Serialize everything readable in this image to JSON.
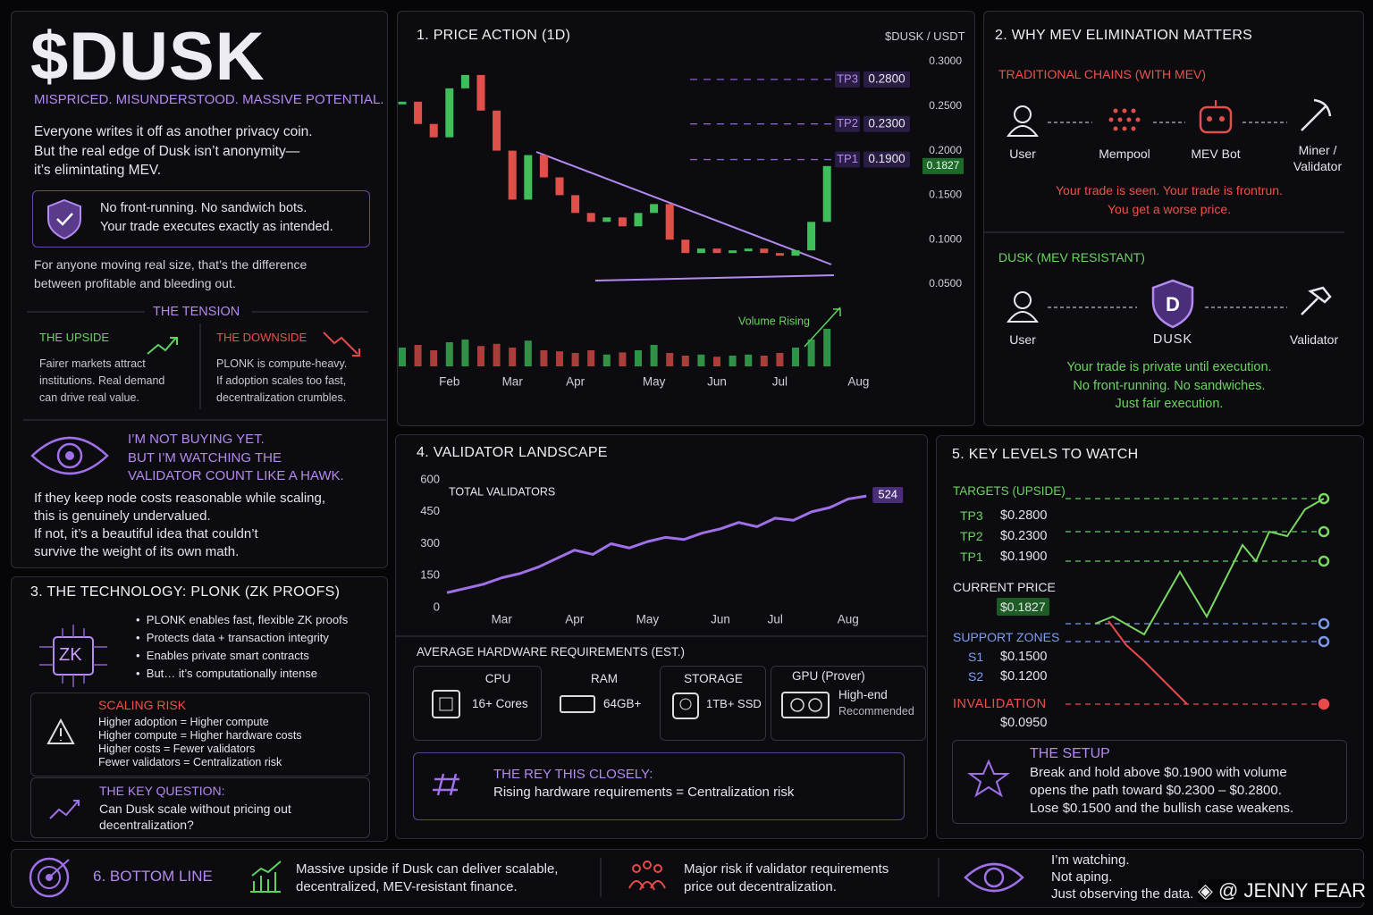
{
  "header": {
    "title": "$DUSK",
    "tagline": "MISPRICED. MISUNDERSTOOD. MASSIVE POTENTIAL.",
    "intro": [
      "Everyone writes it off as another privacy coin.",
      "But the real edge of Dusk isn’t anonymity—",
      "it’s elimintating MEV."
    ],
    "callout": [
      "No front-running. No sandwich bots.",
      "Your trade executes exactly as intended."
    ],
    "note": [
      "For anyone moving real size, that’s the difference",
      "between profitable and bleeding out."
    ]
  },
  "tension": {
    "title": "THE TENSION",
    "upside": {
      "title": "THE UPSIDE",
      "lines": [
        "Fairer markets attract",
        "institutions. Real demand",
        "can drive real value."
      ]
    },
    "downside": {
      "title": "THE DOWNSIDE",
      "lines": [
        "PLONK is compute-heavy.",
        "If adoption scales too fast,",
        "decentralization crumbles."
      ]
    }
  },
  "watch": {
    "headline": [
      "I’M NOT BUYING YET.",
      "BUT I’M WATCHING THE",
      "VALIDATOR COUNT LIKE A HAWK."
    ],
    "body": [
      "If they keep node costs reasonable while scaling,",
      "this is genuinely undervalued.",
      "If not, it’s a beautiful idea that couldn’t",
      "survive the weight of its own math."
    ]
  },
  "technology": {
    "title": "3. THE TECHNOLOGY: PLONK (ZK PROOFS)",
    "icon": "ZK",
    "bullets": [
      "PLONK enables fast, flexible ZK proofs",
      "Protects data + transaction integrity",
      "Enables private smart contracts",
      "But… it’s computationally intense"
    ],
    "risk": {
      "title": "SCALING RISK",
      "lines": [
        "Higher adoption = Higher compute",
        "Higher compute = Higher hardware costs",
        "Higher costs = Fewer validators",
        "Fewer validators = Centralization risk"
      ]
    },
    "question": {
      "title": "THE KEY QUESTION:",
      "lines": [
        "Can Dusk scale without pricing out",
        "decentralization?"
      ]
    }
  },
  "chart_data": [
    {
      "type": "candlestick",
      "title": "1. PRICE ACTION (1D)",
      "pair": "$DUSK / USDT",
      "categories": [
        null,
        null,
        null,
        "Feb",
        null,
        null,
        null,
        "Mar",
        null,
        null,
        null,
        "Apr",
        null,
        null,
        null,
        null,
        "May",
        null,
        null,
        null,
        "Jun",
        null,
        null,
        null,
        "Jul",
        null,
        null,
        null,
        null,
        "Aug"
      ],
      "values": [
        0.255,
        0.23,
        0.215,
        0.27,
        0.285,
        0.245,
        0.2,
        0.145,
        0.195,
        0.17,
        0.15,
        0.13,
        0.12,
        0.125,
        0.115,
        0.13,
        0.14,
        0.1,
        0.085,
        0.09,
        0.085,
        0.088,
        0.09,
        0.085,
        0.082,
        0.088,
        0.12,
        0.1827,
        null,
        null
      ],
      "volume": [
        35,
        40,
        30,
        45,
        50,
        38,
        42,
        35,
        48,
        30,
        28,
        25,
        30,
        22,
        26,
        30,
        40,
        25,
        20,
        22,
        18,
        20,
        22,
        20,
        25,
        35,
        50,
        70,
        null,
        null
      ],
      "up_color": "#3fbf5a",
      "down_color": "#e0504a",
      "ylim": [
        0.04,
        0.31
      ],
      "yticks": [
        {
          "value": 0.3,
          "label": "0.3000"
        },
        {
          "value": 0.25,
          "label": "0.2500"
        },
        {
          "value": 0.2,
          "label": "0.2000"
        },
        {
          "value": 0.15,
          "label": "0.1500"
        },
        {
          "value": 0.1,
          "label": "0.1000"
        },
        {
          "value": 0.05,
          "label": "0.0500"
        }
      ],
      "grid": false,
      "targets": [
        {
          "name": "TP3",
          "value": 0.28,
          "label": "0.2800"
        },
        {
          "name": "TP2",
          "value": 0.23,
          "label": "0.2300"
        },
        {
          "name": "TP1",
          "value": 0.19,
          "label": "0.1900"
        }
      ],
      "current": {
        "value": 0.1827,
        "label": "0.1827"
      },
      "annotation": "Volume Rising"
    },
    {
      "type": "line",
      "title": "4. VALIDATOR LANDSCAPE",
      "categories": [
        null,
        null,
        null,
        "Mar",
        null,
        null,
        null,
        "Apr",
        null,
        null,
        null,
        "May",
        null,
        null,
        null,
        "Jun",
        null,
        null,
        "Jul",
        null,
        null,
        null,
        "Aug",
        null
      ],
      "series": [
        {
          "name": "TOTAL VALIDATORS",
          "color": "#a070e8",
          "values": [
            70,
            90,
            110,
            140,
            160,
            190,
            230,
            270,
            250,
            300,
            280,
            310,
            330,
            320,
            350,
            370,
            400,
            380,
            420,
            410,
            450,
            470,
            510,
            524
          ]
        }
      ],
      "ylim": [
        0,
        600
      ],
      "yticks": [
        600,
        450,
        300,
        150,
        0
      ],
      "grid": false
    }
  ],
  "mev": {
    "title": "2. WHY MEV ELIMINATION MATTERS",
    "traditional": {
      "title": "TRADITIONAL CHAINS (WITH MEV)",
      "nodes": [
        "User",
        "Mempool",
        "MEV Bot",
        "Miner / Validator"
      ],
      "caption": [
        "Your trade is seen. Your trade is frontrun.",
        "You get a worse price."
      ]
    },
    "dusk": {
      "title": "DUSK (MEV RESISTANT)",
      "nodes": [
        "User",
        "DUSK",
        "Validator"
      ],
      "caption": [
        "Your trade is private until execution.",
        "No front-running. No sandwiches.",
        "Just fair execution."
      ]
    }
  },
  "hardware": {
    "title": "AVERAGE HARDWARE REQUIREMENTS (EST.)",
    "items": [
      {
        "label": "CPU",
        "value": "16+ Cores"
      },
      {
        "label": "RAM",
        "value": "64GB+"
      },
      {
        "label": "STORAGE",
        "value": "1TB+ SSD"
      },
      {
        "label": "GPU (Prover)",
        "value": "High-end",
        "note": "Recommended"
      }
    ],
    "watch": {
      "title": "THE REY THIS CLOSELY:",
      "text": "Rising hardware requirements = Centralization risk"
    }
  },
  "levels": {
    "title": "5. KEY LEVELS TO WATCH",
    "targets_title": "TARGETS (UPSIDE)",
    "targets": [
      {
        "name": "TP3",
        "price": "$0.2800"
      },
      {
        "name": "TP2",
        "price": "$0.2300"
      },
      {
        "name": "TP1",
        "price": "$0.1900"
      }
    ],
    "current_title": "CURRENT PRICE",
    "current": "$0.1827",
    "support_title": "SUPPORT ZONES",
    "supports": [
      {
        "name": "S1",
        "price": "$0.1500"
      },
      {
        "name": "S2",
        "price": "$0.1200"
      }
    ],
    "invalidation_title": "INVALIDATION",
    "invalidation": "$0.0950",
    "setup": {
      "title": "THE SETUP",
      "lines": [
        "Break and hold above $0.1900 with volume",
        "opens the path toward $0.2300 – $0.2800.",
        "Lose $0.1500 and the bullish case weakens."
      ]
    }
  },
  "bottom": {
    "title": "6. BOTTOM LINE",
    "upside": [
      "Massive upside if Dusk can deliver scalable,",
      "decentralized, MEV-resistant finance."
    ],
    "risk": [
      "Major risk if validator requirements",
      "price out decentralization."
    ],
    "closing": [
      "I’m watching.",
      "Not aping.",
      "Just observing the data."
    ]
  },
  "credit": "◈ @ JENNY FEAR"
}
